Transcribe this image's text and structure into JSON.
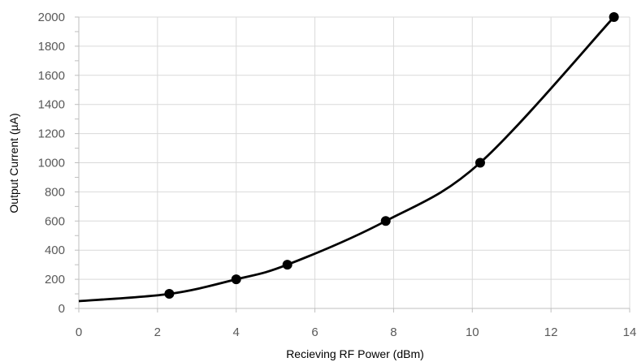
{
  "chart_data": {
    "type": "line",
    "title": "",
    "xlabel": "Recieving  RF Power (dBm)",
    "ylabel": "Output Current (µA)",
    "xlim": [
      0,
      14
    ],
    "ylim": [
      0,
      2000
    ],
    "x_ticks": [
      "0",
      "2",
      "4",
      "6",
      "8",
      "10",
      "12",
      "14"
    ],
    "y_ticks": [
      "0",
      "200",
      "400",
      "600",
      "800",
      "1000",
      "1200",
      "1400",
      "1600",
      "1800",
      "2000"
    ],
    "grid": true,
    "series": [
      {
        "name": "",
        "color": "#000000",
        "markers": "circle",
        "smooth": true,
        "x": [
          2.3,
          4.0,
          5.3,
          7.8,
          10.2,
          13.6
        ],
        "y": [
          100,
          200,
          300,
          600,
          1000,
          2000
        ]
      }
    ],
    "curve_start": {
      "x": 0,
      "y": 50
    }
  }
}
